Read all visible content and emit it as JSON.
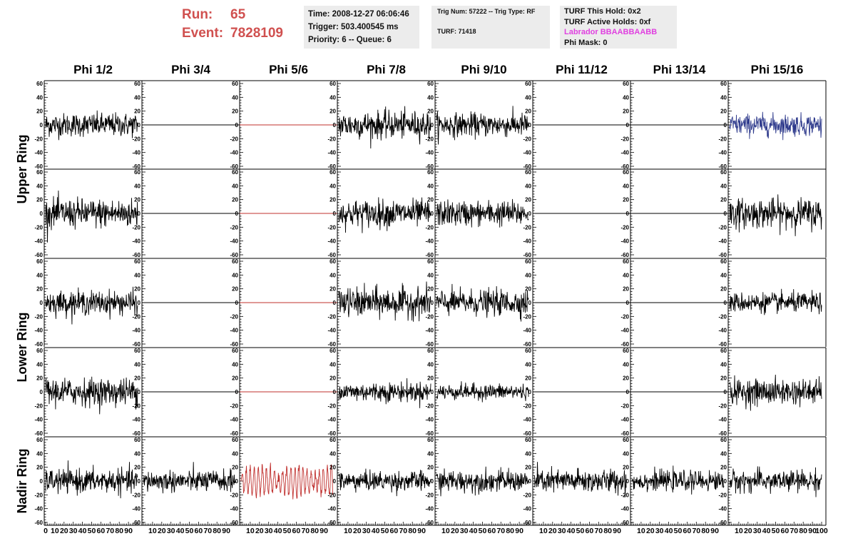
{
  "run_info": {
    "run_label": "Run:",
    "run_value": "65",
    "event_label": "Event:",
    "event_value": "7828109"
  },
  "timing_box": {
    "time": "Time: 2008-12-27 06:06:46",
    "trigger": "Trigger: 503.400545 ms",
    "priority": "Priority: 6 -- Queue: 6"
  },
  "trig_box": {
    "trig": "Trig Num: 57222 -- Trig Type: RF",
    "turf": "TURF: 71418"
  },
  "turf_box": {
    "this_hold": "TURF This Hold: 0x2",
    "active_holds": "TURF Active Holds: 0xf",
    "labrador": "Labrador BBAABBAABB",
    "phi_mask": "Phi Mask: 0"
  },
  "colors": {
    "default_trace": "#000000",
    "red_trace": "#c0302e",
    "blue_trace": "#2e3a8c",
    "accent_magenta": "#e040e0",
    "header_red": "#d0504f"
  },
  "columns": [
    "Phi 1/2",
    "Phi 3/4",
    "Phi 5/6",
    "Phi 7/8",
    "Phi 9/10",
    "Phi 11/12",
    "Phi 13/14",
    "Phi 15/16"
  ],
  "rings": [
    "Upper Ring",
    "Lower Ring",
    "Nadir Ring"
  ],
  "chart_data": {
    "type": "line",
    "title": "",
    "x_tick_labels": [
      "0",
      "10",
      "20",
      "30",
      "40",
      "50",
      "60",
      "70",
      "80",
      "90",
      "100"
    ],
    "y_tick_labels": [
      "60",
      "40",
      "20",
      "0",
      "-20",
      "-40",
      "-60"
    ],
    "xlim": [
      0,
      100
    ],
    "ylim": [
      -60,
      60
    ],
    "grid": false,
    "rows": [
      {
        "ring": "Upper Ring",
        "panels": [
          {
            "column": "Phi 1/2",
            "state": "noise",
            "color": "black",
            "amplitude": 12
          },
          {
            "column": "Phi 3/4",
            "state": "flat",
            "color": "black",
            "amplitude": 0
          },
          {
            "column": "Phi 5/6",
            "state": "flat",
            "color": "red",
            "amplitude": 0
          },
          {
            "column": "Phi 7/8",
            "state": "noise",
            "color": "black",
            "amplitude": 14
          },
          {
            "column": "Phi 9/10",
            "state": "noise",
            "color": "black",
            "amplitude": 12
          },
          {
            "column": "Phi 11/12",
            "state": "flat",
            "color": "black",
            "amplitude": 0
          },
          {
            "column": "Phi 13/14",
            "state": "flat",
            "color": "black",
            "amplitude": 0
          },
          {
            "column": "Phi 15/16",
            "state": "noise",
            "color": "blue",
            "amplitude": 11
          }
        ]
      },
      {
        "ring": "Upper Ring",
        "panels": [
          {
            "column": "Phi 1/2",
            "state": "noise",
            "color": "black",
            "amplitude": 15
          },
          {
            "column": "Phi 3/4",
            "state": "flat",
            "color": "black",
            "amplitude": 0
          },
          {
            "column": "Phi 5/6",
            "state": "flat",
            "color": "red",
            "amplitude": 0
          },
          {
            "column": "Phi 7/8",
            "state": "noise",
            "color": "black",
            "amplitude": 14
          },
          {
            "column": "Phi 9/10",
            "state": "noise",
            "color": "black",
            "amplitude": 13
          },
          {
            "column": "Phi 11/12",
            "state": "flat",
            "color": "black",
            "amplitude": 0
          },
          {
            "column": "Phi 13/14",
            "state": "flat",
            "color": "black",
            "amplitude": 0
          },
          {
            "column": "Phi 15/16",
            "state": "noise",
            "color": "black",
            "amplitude": 15
          }
        ]
      },
      {
        "ring": "Lower Ring",
        "panels": [
          {
            "column": "Phi 1/2",
            "state": "noise",
            "color": "black",
            "amplitude": 12
          },
          {
            "column": "Phi 3/4",
            "state": "flat",
            "color": "black",
            "amplitude": 0
          },
          {
            "column": "Phi 5/6",
            "state": "flat",
            "color": "red",
            "amplitude": 0
          },
          {
            "column": "Phi 7/8",
            "state": "noise",
            "color": "black",
            "amplitude": 15
          },
          {
            "column": "Phi 9/10",
            "state": "noise",
            "color": "black",
            "amplitude": 13
          },
          {
            "column": "Phi 11/12",
            "state": "flat",
            "color": "black",
            "amplitude": 0
          },
          {
            "column": "Phi 13/14",
            "state": "flat",
            "color": "black",
            "amplitude": 0
          },
          {
            "column": "Phi 15/16",
            "state": "noise",
            "color": "black",
            "amplitude": 10
          }
        ]
      },
      {
        "ring": "Lower Ring",
        "panels": [
          {
            "column": "Phi 1/2",
            "state": "noise",
            "color": "black",
            "amplitude": 14
          },
          {
            "column": "Phi 3/4",
            "state": "flat",
            "color": "black",
            "amplitude": 0
          },
          {
            "column": "Phi 5/6",
            "state": "flat",
            "color": "red",
            "amplitude": 0
          },
          {
            "column": "Phi 7/8",
            "state": "noise",
            "color": "black",
            "amplitude": 10
          },
          {
            "column": "Phi 9/10",
            "state": "noise",
            "color": "black",
            "amplitude": 8
          },
          {
            "column": "Phi 11/12",
            "state": "flat",
            "color": "black",
            "amplitude": 0
          },
          {
            "column": "Phi 13/14",
            "state": "flat",
            "color": "black",
            "amplitude": 0
          },
          {
            "column": "Phi 15/16",
            "state": "noise",
            "color": "black",
            "amplitude": 13
          }
        ]
      },
      {
        "ring": "Nadir Ring",
        "panels": [
          {
            "column": "Phi 1/2",
            "state": "noise",
            "color": "black",
            "amplitude": 12
          },
          {
            "column": "Phi 3/4",
            "state": "noise",
            "color": "black",
            "amplitude": 11
          },
          {
            "column": "Phi 5/6",
            "state": "noise",
            "color": "red",
            "amplitude": 22
          },
          {
            "column": "Phi 7/8",
            "state": "noise",
            "color": "black",
            "amplitude": 10
          },
          {
            "column": "Phi 9/10",
            "state": "noise",
            "color": "black",
            "amplitude": 11
          },
          {
            "column": "Phi 11/12",
            "state": "noise",
            "color": "black",
            "amplitude": 12
          },
          {
            "column": "Phi 13/14",
            "state": "noise",
            "color": "black",
            "amplitude": 10
          },
          {
            "column": "Phi 15/16",
            "state": "noise",
            "color": "black",
            "amplitude": 11
          }
        ]
      }
    ]
  }
}
